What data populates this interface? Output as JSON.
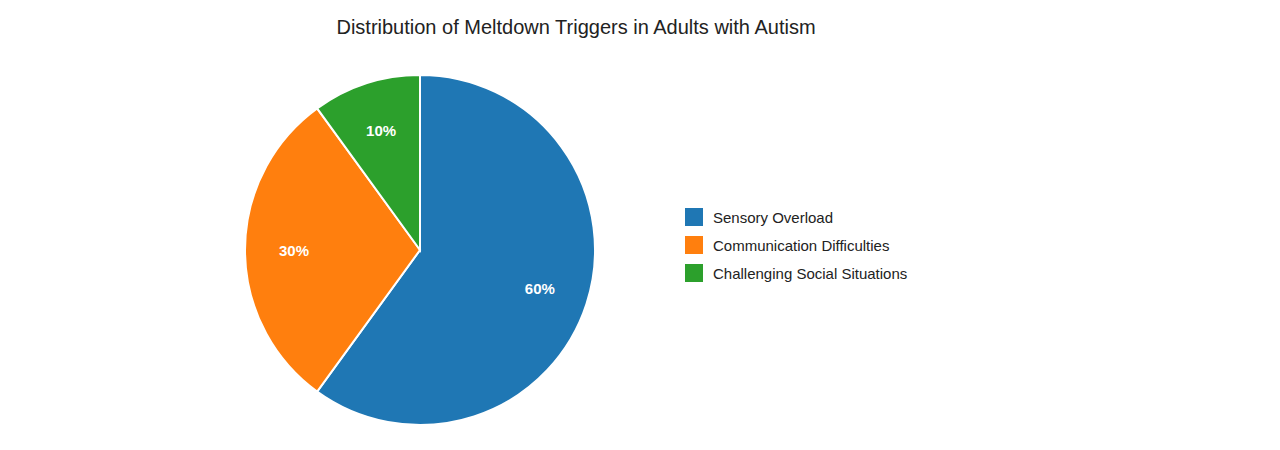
{
  "chart_data": {
    "type": "pie",
    "title": "Distribution of Meltdown Triggers in Adults with Autism",
    "categories": [
      "Sensory Overload",
      "Communication Difficulties",
      "Challenging Social Situations"
    ],
    "values": [
      60,
      30,
      10
    ],
    "value_labels": [
      "60%",
      "30%",
      "10%"
    ],
    "data_labels": true,
    "legend": "right"
  }
}
